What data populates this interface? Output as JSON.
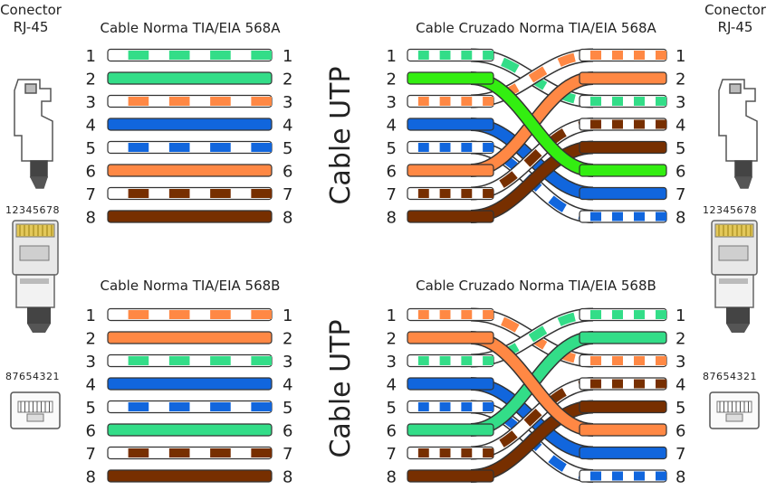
{
  "connector_left": {
    "line1": "Conector",
    "line2": "RJ-45"
  },
  "connector_right": {
    "line1": "Conector",
    "line2": "RJ-45"
  },
  "pin_order_top": "12345678",
  "pin_order_bottom": "87654321",
  "vertical_label_top": "Cable UTP",
  "vertical_label_bottom": "Cable UTP",
  "colors": {
    "green": "#33dd88",
    "orange": "#ff8844",
    "blue": "#1166dd",
    "brown": "#772f00",
    "bright_green": "#33ee11",
    "outline": "#333333"
  },
  "panels": [
    {
      "id": "straight-568a",
      "title": "Cable Norma TIA/EIA 568A",
      "wires": [
        {
          "n": "1",
          "color": "green",
          "striped": true
        },
        {
          "n": "2",
          "color": "green",
          "striped": false
        },
        {
          "n": "3",
          "color": "orange",
          "striped": true
        },
        {
          "n": "4",
          "color": "blue",
          "striped": false
        },
        {
          "n": "5",
          "color": "blue",
          "striped": true
        },
        {
          "n": "6",
          "color": "orange",
          "striped": false
        },
        {
          "n": "7",
          "color": "brown",
          "striped": true
        },
        {
          "n": "8",
          "color": "brown",
          "striped": false
        }
      ]
    },
    {
      "id": "straight-568b",
      "title": "Cable Norma TIA/EIA 568B",
      "wires": [
        {
          "n": "1",
          "color": "orange",
          "striped": true
        },
        {
          "n": "2",
          "color": "orange",
          "striped": false
        },
        {
          "n": "3",
          "color": "green",
          "striped": true
        },
        {
          "n": "4",
          "color": "blue",
          "striped": false
        },
        {
          "n": "5",
          "color": "blue",
          "striped": true
        },
        {
          "n": "6",
          "color": "green",
          "striped": false
        },
        {
          "n": "7",
          "color": "brown",
          "striped": true
        },
        {
          "n": "8",
          "color": "brown",
          "striped": false
        }
      ]
    },
    {
      "id": "crossover-568a",
      "title": "Cable Cruzado Norma TIA/EIA 568A",
      "left": [
        {
          "n": "1",
          "color": "green",
          "striped": true
        },
        {
          "n": "2",
          "color": "bright_green",
          "striped": false
        },
        {
          "n": "3",
          "color": "orange",
          "striped": true
        },
        {
          "n": "4",
          "color": "blue",
          "striped": false
        },
        {
          "n": "5",
          "color": "blue",
          "striped": true
        },
        {
          "n": "6",
          "color": "orange",
          "striped": false
        },
        {
          "n": "7",
          "color": "brown",
          "striped": true
        },
        {
          "n": "8",
          "color": "brown",
          "striped": false
        }
      ],
      "right": [
        {
          "n": "1",
          "color": "orange",
          "striped": true
        },
        {
          "n": "2",
          "color": "orange",
          "striped": false
        },
        {
          "n": "3",
          "color": "green",
          "striped": true
        },
        {
          "n": "4",
          "color": "brown",
          "striped": true
        },
        {
          "n": "5",
          "color": "brown",
          "striped": false
        },
        {
          "n": "6",
          "color": "bright_green",
          "striped": false
        },
        {
          "n": "7",
          "color": "blue",
          "striped": false
        },
        {
          "n": "8",
          "color": "blue",
          "striped": true
        }
      ],
      "connections": [
        [
          1,
          3
        ],
        [
          2,
          6
        ],
        [
          3,
          1
        ],
        [
          4,
          7
        ],
        [
          5,
          8
        ],
        [
          6,
          2
        ],
        [
          7,
          4
        ],
        [
          8,
          5
        ]
      ]
    },
    {
      "id": "crossover-568b",
      "title": "Cable Cruzado Norma TIA/EIA 568B",
      "left": [
        {
          "n": "1",
          "color": "orange",
          "striped": true
        },
        {
          "n": "2",
          "color": "orange",
          "striped": false
        },
        {
          "n": "3",
          "color": "green",
          "striped": true
        },
        {
          "n": "4",
          "color": "blue",
          "striped": false
        },
        {
          "n": "5",
          "color": "blue",
          "striped": true
        },
        {
          "n": "6",
          "color": "green",
          "striped": false
        },
        {
          "n": "7",
          "color": "brown",
          "striped": true
        },
        {
          "n": "8",
          "color": "brown",
          "striped": false
        }
      ],
      "right": [
        {
          "n": "1",
          "color": "green",
          "striped": true
        },
        {
          "n": "2",
          "color": "green",
          "striped": false
        },
        {
          "n": "3",
          "color": "orange",
          "striped": true
        },
        {
          "n": "4",
          "color": "brown",
          "striped": true
        },
        {
          "n": "5",
          "color": "brown",
          "striped": false
        },
        {
          "n": "6",
          "color": "orange",
          "striped": false
        },
        {
          "n": "7",
          "color": "blue",
          "striped": false
        },
        {
          "n": "8",
          "color": "blue",
          "striped": true
        }
      ],
      "connections": [
        [
          1,
          3
        ],
        [
          2,
          6
        ],
        [
          3,
          1
        ],
        [
          4,
          7
        ],
        [
          5,
          8
        ],
        [
          6,
          2
        ],
        [
          7,
          4
        ],
        [
          8,
          5
        ]
      ]
    }
  ]
}
